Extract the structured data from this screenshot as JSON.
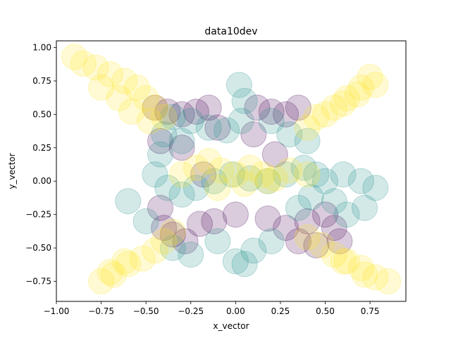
{
  "chart_data": {
    "type": "scatter",
    "title": "data10dev",
    "xlabel": "x_vector",
    "ylabel": "y_vector",
    "xlim": [
      -1.0,
      0.95
    ],
    "ylim": [
      -0.9,
      1.05
    ],
    "xticks": [
      "−1.00",
      "−0.75",
      "−0.50",
      "−0.25",
      "0.00",
      "0.25",
      "0.50",
      "0.75"
    ],
    "yticks": [
      "−0.75",
      "−0.50",
      "−0.25",
      "0.00",
      "0.25",
      "0.50",
      "0.75",
      "1.00"
    ],
    "grid": false,
    "legend": "none",
    "marker_alpha": 0.2,
    "colors": {
      "purple": "#440154",
      "teal": "#21918c",
      "yellow": "#fde725"
    },
    "series": [
      {
        "color": "#440154",
        "x": [
          -0.45,
          -0.38,
          -0.3,
          -0.22,
          -0.15,
          0.12,
          0.2,
          0.28,
          0.35,
          -0.42,
          -0.42,
          -0.4,
          -0.35,
          -0.28,
          -0.2,
          -0.12,
          0.0,
          0.18,
          0.28,
          0.4,
          0.5,
          0.55,
          0.58,
          0.45,
          0.35,
          -0.3,
          -0.1,
          0.1,
          0.22,
          -0.18
        ],
        "y": [
          0.55,
          0.52,
          0.5,
          0.52,
          0.55,
          0.55,
          0.52,
          0.5,
          0.55,
          0.3,
          -0.2,
          -0.35,
          -0.4,
          -0.45,
          -0.32,
          -0.3,
          -0.25,
          -0.28,
          -0.35,
          -0.3,
          -0.25,
          -0.35,
          -0.45,
          -0.48,
          -0.45,
          0.25,
          0.4,
          0.35,
          0.2,
          0.05
        ]
      },
      {
        "color": "#21918c",
        "x": [
          0.02,
          0.05,
          0.03,
          -0.05,
          -0.15,
          -0.25,
          -0.35,
          -0.4,
          -0.42,
          -0.45,
          -0.38,
          -0.3,
          -0.22,
          -0.12,
          -0.02,
          0.08,
          0.18,
          0.28,
          0.38,
          0.45,
          0.5,
          0.6,
          0.7,
          0.78,
          0.72,
          0.62,
          0.55,
          0.42,
          0.35,
          0.2,
          0.1,
          -0.1,
          -0.25,
          -0.35,
          -0.5,
          -0.6,
          0.0,
          0.05,
          -0.3,
          0.3,
          0.4,
          0.2
        ],
        "y": [
          0.72,
          0.6,
          0.45,
          0.38,
          0.4,
          0.45,
          0.48,
          0.35,
          0.2,
          0.05,
          -0.05,
          -0.1,
          -0.05,
          0.0,
          0.05,
          0.02,
          0.0,
          0.05,
          0.1,
          0.05,
          0.0,
          0.05,
          0.0,
          -0.05,
          -0.2,
          -0.25,
          -0.15,
          -0.12,
          -0.2,
          -0.45,
          -0.52,
          -0.45,
          -0.55,
          -0.5,
          -0.3,
          -0.15,
          -0.6,
          -0.62,
          0.3,
          0.35,
          0.3,
          0.45
        ]
      },
      {
        "color": "#fde725",
        "x": [
          -0.9,
          -0.85,
          -0.78,
          -0.7,
          -0.62,
          -0.55,
          -0.5,
          -0.45,
          -0.4,
          -0.75,
          -0.65,
          -0.58,
          -0.48,
          0.4,
          0.45,
          0.55,
          0.62,
          0.7,
          0.75,
          0.78,
          0.5,
          0.6,
          0.68,
          -0.75,
          -0.68,
          -0.6,
          -0.52,
          -0.45,
          -0.4,
          -0.35,
          -0.7,
          -0.62,
          0.4,
          0.48,
          0.55,
          0.62,
          0.7,
          0.78,
          0.85,
          0.6,
          0.72,
          -0.3,
          -0.22,
          -0.15,
          -0.08,
          0.0,
          0.08,
          0.15,
          0.22,
          0.3,
          0.4,
          -0.1,
          0.05,
          0.18
        ],
        "y": [
          0.93,
          0.88,
          0.85,
          0.8,
          0.75,
          0.7,
          0.62,
          0.55,
          0.48,
          0.7,
          0.62,
          0.52,
          0.45,
          0.4,
          0.48,
          0.55,
          0.62,
          0.7,
          0.78,
          0.72,
          0.5,
          0.58,
          0.65,
          -0.75,
          -0.7,
          -0.62,
          -0.58,
          -0.52,
          -0.45,
          -0.38,
          -0.68,
          -0.6,
          -0.42,
          -0.48,
          -0.55,
          -0.6,
          -0.65,
          -0.72,
          -0.75,
          -0.6,
          -0.7,
          0.05,
          0.1,
          0.15,
          0.08,
          0.05,
          0.1,
          0.05,
          0.02,
          0.08,
          0.05,
          -0.05,
          -0.02,
          0.0
        ]
      }
    ]
  }
}
